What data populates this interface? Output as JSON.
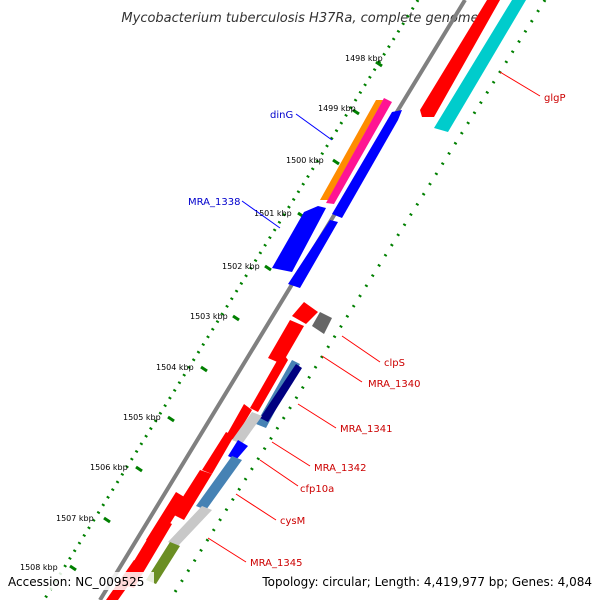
{
  "title": "Mycobacterium tuberculosis H37Ra, complete genome",
  "tick_labels": [
    "1498 kbp",
    "1499 kbp",
    "1500 kbp",
    "1501 kbp",
    "1502 kbp",
    "1503 kbp",
    "1504 kbp",
    "1505 kbp",
    "1506 kbp",
    "1507 kbp",
    "1508 kbp"
  ],
  "gene_labels": {
    "glgP": "glgP",
    "dinG": "dinG",
    "MRA_1338": "MRA_1338",
    "clpS": "clpS",
    "MRA_1340": "MRA_1340",
    "MRA_1341": "MRA_1341",
    "MRA_1342": "MRA_1342",
    "cfp10a": "cfp10a",
    "cysM": "cysM",
    "MRA_1345": "MRA_1345"
  },
  "footer": {
    "accession": "Accession: NC_009525",
    "summary": "Topology: circular; Length: 4,419,977 bp; Genes: 4,084"
  },
  "colors": {
    "red": "#ff0000",
    "blue": "#0000ff",
    "navy": "#000080",
    "steel": "#4682b4",
    "cyan": "#00cccc",
    "orange": "#ff8c00",
    "magenta": "#ff1493",
    "gray": "#c8c8c8",
    "darkgray": "#666666",
    "olive": "#6b8e23",
    "backbone": "#808080",
    "tick": "#008000"
  }
}
